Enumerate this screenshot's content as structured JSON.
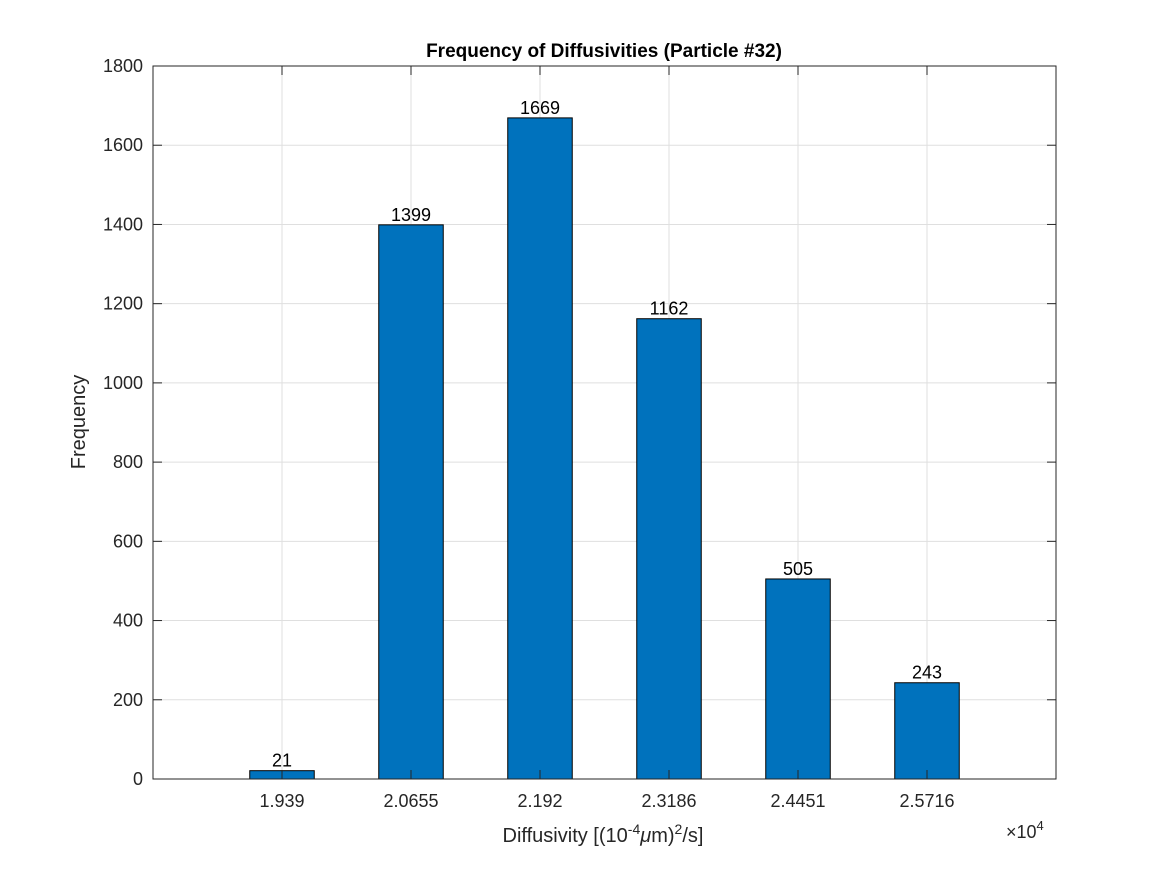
{
  "chart_data": {
    "type": "bar",
    "title": "Frequency of Diffusivities (Particle #32)",
    "xlabel": {
      "prefix": "Diffusivity [(10",
      "exp1": "-4",
      "mu": "μ",
      "mid": "m)",
      "exp2": "2",
      "suffix": "/s]"
    },
    "ylabel": "Frequency",
    "x_exponent": {
      "base": "×10",
      "power": "4"
    },
    "categories": [
      "1.939",
      "2.0655",
      "2.192",
      "2.3186",
      "2.4451",
      "2.5716"
    ],
    "values": [
      21,
      1399,
      1669,
      1162,
      505,
      243
    ],
    "ylim": [
      0,
      1800
    ],
    "yticks": [
      0,
      200,
      400,
      600,
      800,
      1000,
      1200,
      1400,
      1600,
      1800
    ],
    "grid": true,
    "bar_color": "#0072BD",
    "bar_edge_color": "#000000"
  }
}
